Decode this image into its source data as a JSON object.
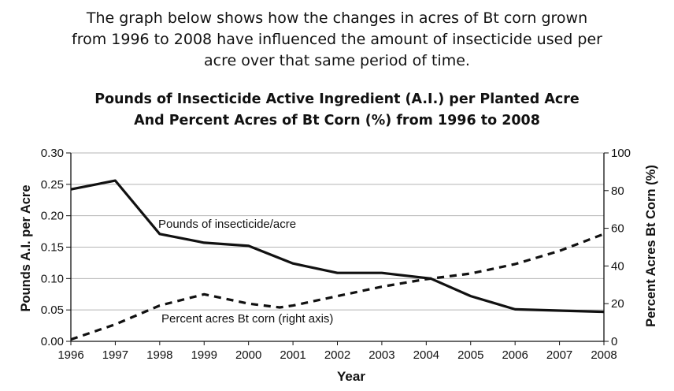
{
  "intro": {
    "line1": "The graph below shows how the changes in acres of Bt corn grown",
    "line2": "from 1996 to 2008 have influenced the amount of insecticide used per",
    "line3": "acre over that same period of time."
  },
  "chart_data": {
    "type": "line",
    "title_line1": "Pounds of Insecticide Active Ingredient (A.I.) per Planted Acre",
    "title_line2": "And Percent Acres of Bt Corn (%) from 1996 to 2008",
    "xlabel": "Year",
    "ylabel_left": "Pounds A.I. per Acre",
    "ylabel_right": "Percent Acres Bt Corn (%)",
    "x": [
      1996,
      1997,
      1998,
      1999,
      2000,
      2001,
      2002,
      2003,
      2004,
      2005,
      2006,
      2007,
      2008
    ],
    "x_ticks": [
      "1996",
      "1997",
      "1998",
      "1999",
      "2000",
      "2001",
      "2002",
      "2003",
      "2004",
      "2005",
      "2006",
      "2007",
      "2008"
    ],
    "ylim_left": [
      0,
      0.3
    ],
    "ylim_right": [
      0,
      100
    ],
    "y_ticks_left": [
      "0.00",
      "0.05",
      "0.10",
      "0.15",
      "0.20",
      "0.25",
      "0.30"
    ],
    "y_ticks_right": [
      "0",
      "20",
      "40",
      "60",
      "80",
      "100"
    ],
    "grid": true,
    "series": [
      {
        "name": "Pounds of insecticide/acre",
        "axis": "left",
        "style": "solid",
        "x": [
          1996,
          1997,
          1998,
          1999,
          2000,
          2001,
          2002,
          2003,
          2004.1,
          2005,
          2006,
          2007,
          2008
        ],
        "values": [
          0.242,
          0.256,
          0.171,
          0.157,
          0.152,
          0.124,
          0.109,
          0.109,
          0.1,
          0.072,
          0.051,
          0.049,
          0.047
        ]
      },
      {
        "name": "Percent acres Bt corn (right axis)",
        "axis": "right",
        "style": "dashed",
        "x": [
          1996,
          1997,
          1998,
          1999,
          2000,
          2000.7,
          2001,
          2002,
          2003,
          2004,
          2005,
          2006,
          2007,
          2008
        ],
        "values": [
          1,
          9,
          19,
          25,
          20,
          18,
          19,
          24,
          29,
          33,
          36,
          41,
          48,
          57
        ]
      }
    ]
  }
}
